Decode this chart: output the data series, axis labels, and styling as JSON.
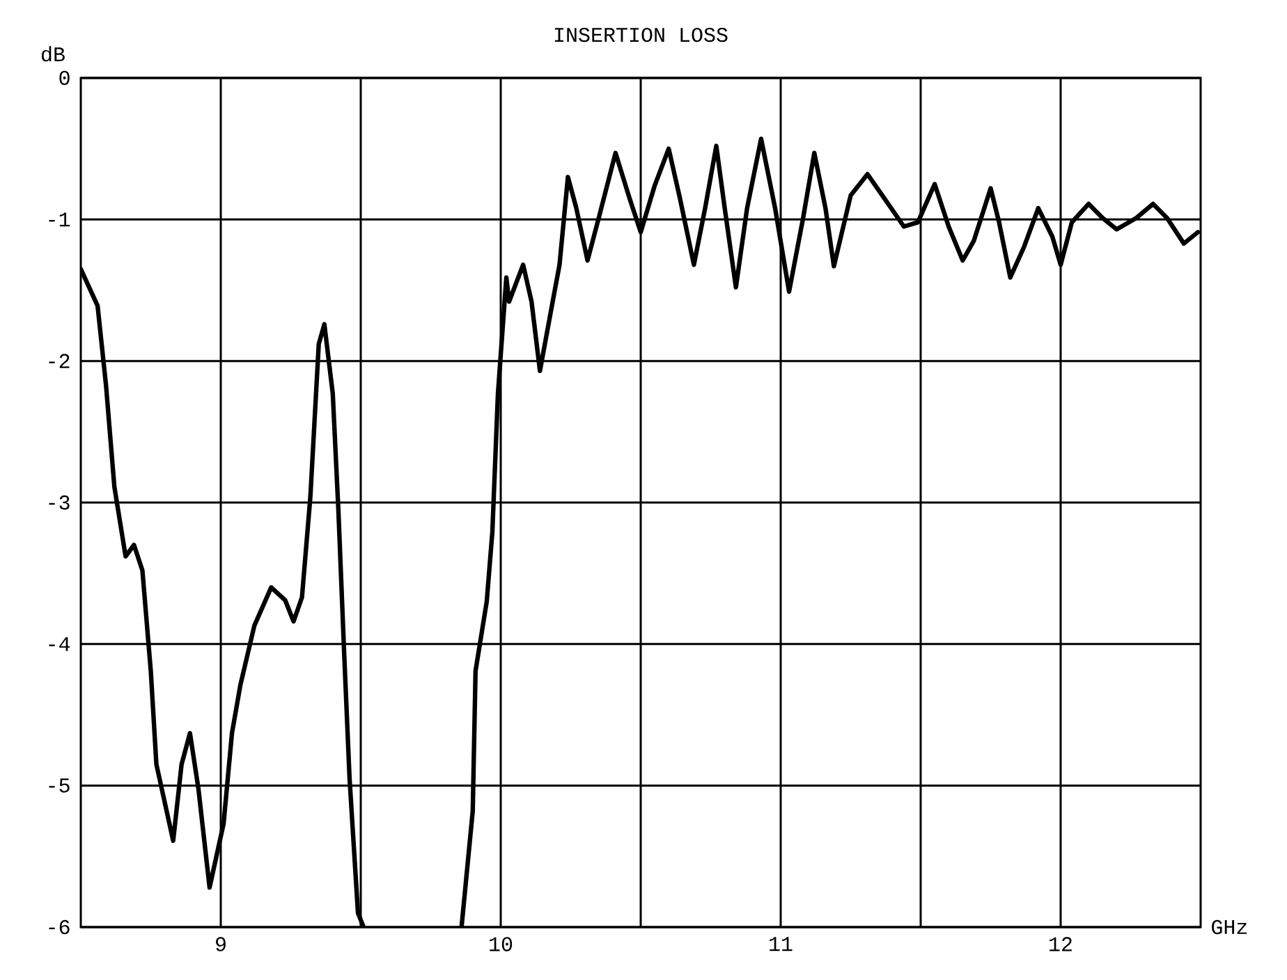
{
  "chart_data": {
    "type": "line",
    "title": "INSERTION LOSS",
    "xlabel": "GHz",
    "ylabel": "dB",
    "xlim": [
      8.5,
      12.5
    ],
    "ylim": [
      -6,
      0
    ],
    "xticks": [
      9,
      {
        "value": 9.5,
        "label": null
      },
      10,
      {
        "value": 10.5,
        "label": null
      },
      11,
      {
        "value": 11.5,
        "label": null
      },
      12
    ],
    "yticks": [
      -6,
      -5,
      -4,
      -3,
      -2,
      -1,
      0
    ],
    "grid": true,
    "series": [
      {
        "color": "#000000",
        "x": [
          8.5,
          8.56,
          8.59,
          8.62,
          8.66,
          8.69,
          8.72,
          8.75,
          8.77,
          8.83,
          8.86,
          8.89,
          8.92,
          8.96,
          9.01,
          9.04,
          9.07,
          9.12,
          9.18,
          9.23,
          9.26,
          9.29,
          9.32,
          9.35,
          9.37,
          9.4,
          9.42,
          9.44,
          9.46,
          9.49,
          9.51,
          9.7,
          9.86,
          9.9,
          9.91,
          9.95,
          9.97,
          9.99,
          10.02,
          10.03,
          10.08,
          10.11,
          10.14,
          10.18,
          10.21,
          10.24,
          10.27,
          10.31,
          10.35,
          10.41,
          10.46,
          10.5,
          10.55,
          10.6,
          10.64,
          10.69,
          10.73,
          10.77,
          10.8,
          10.84,
          10.88,
          10.93,
          10.98,
          11.03,
          11.08,
          11.12,
          11.16,
          11.19,
          11.25,
          11.31,
          11.37,
          11.44,
          11.49,
          11.55,
          11.6,
          11.65,
          11.69,
          11.75,
          11.78,
          11.82,
          11.87,
          11.92,
          11.97,
          12.0,
          12.04,
          12.1,
          12.15,
          12.2,
          12.27,
          12.33,
          12.38,
          12.44,
          12.49
        ],
        "values": [
          -1.35,
          -1.61,
          -2.17,
          -2.89,
          -3.38,
          -3.3,
          -3.48,
          -4.19,
          -4.85,
          -5.39,
          -4.85,
          -4.63,
          -5.02,
          -5.72,
          -5.27,
          -4.63,
          -4.29,
          -3.87,
          -3.6,
          -3.69,
          -3.84,
          -3.67,
          -2.96,
          -1.88,
          -1.74,
          -2.23,
          -3.05,
          -4.03,
          -4.95,
          -5.9,
          -6,
          null,
          -6,
          -5.18,
          -4.19,
          -3.7,
          -3.21,
          -2.23,
          -1.41,
          -1.58,
          -1.32,
          -1.58,
          -2.07,
          -1.64,
          -1.32,
          -0.7,
          -0.92,
          -1.29,
          -0.99,
          -0.53,
          -0.85,
          -1.09,
          -0.76,
          -0.5,
          -0.85,
          -1.32,
          -0.92,
          -0.48,
          -0.92,
          -1.48,
          -0.92,
          -0.43,
          -0.92,
          -1.51,
          -0.99,
          -0.53,
          -0.92,
          -1.33,
          -0.83,
          -0.68,
          -0.85,
          -1.05,
          -1.02,
          -0.75,
          -1.05,
          -1.29,
          -1.15,
          -0.78,
          -1.02,
          -1.41,
          -1.19,
          -0.92,
          -1.12,
          -1.32,
          -1.02,
          -0.89,
          -0.99,
          -1.07,
          -0.99,
          -0.89,
          -0.99,
          -1.17,
          -1.09
        ]
      }
    ]
  }
}
